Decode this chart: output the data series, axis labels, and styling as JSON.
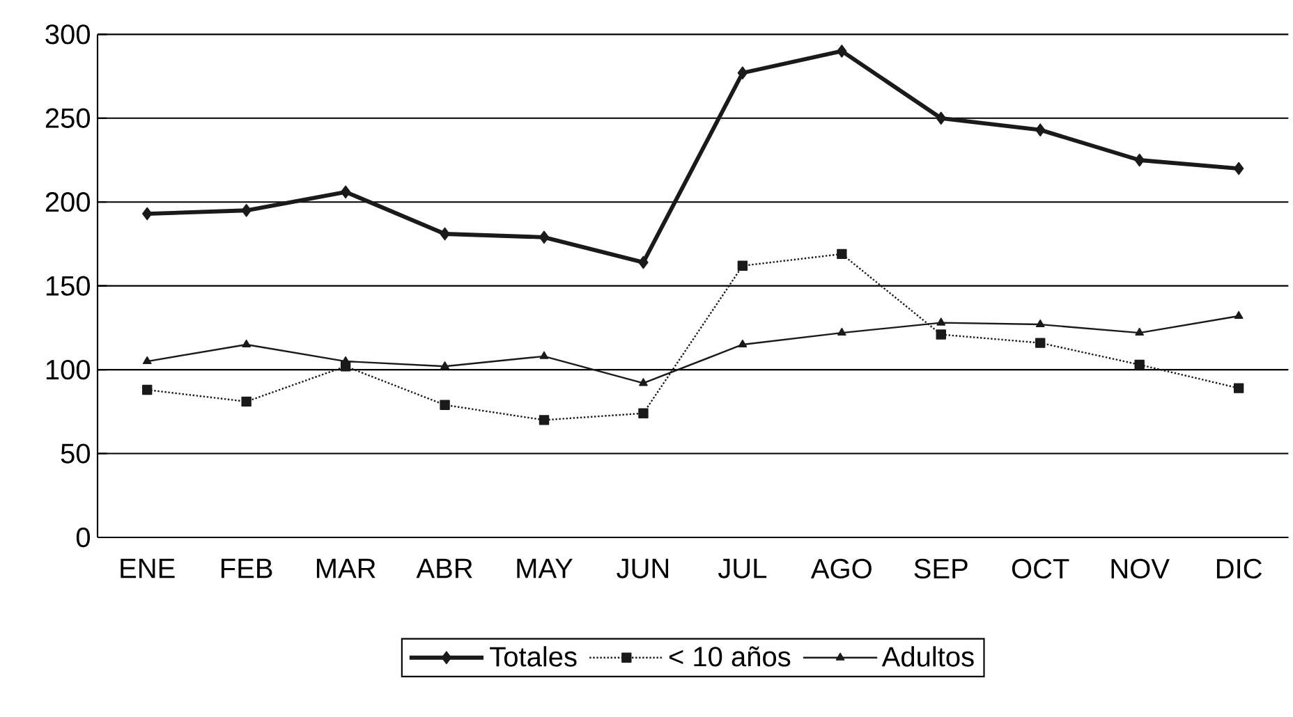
{
  "chart_data": {
    "type": "line",
    "categories": [
      "ENE",
      "FEB",
      "MAR",
      "ABR",
      "MAY",
      "JUN",
      "JUL",
      "AGO",
      "SEP",
      "OCT",
      "NOV",
      "DIC"
    ],
    "series": [
      {
        "name": "Totales",
        "color": "#1a1a1a",
        "marker": "diamond",
        "line_style": "solid",
        "values": [
          193,
          195,
          206,
          181,
          179,
          164,
          277,
          290,
          250,
          243,
          225,
          220
        ]
      },
      {
        "name": "< 10 años",
        "color": "#1a1a1a",
        "marker": "square",
        "line_style": "dotted",
        "values": [
          88,
          81,
          102,
          79,
          70,
          74,
          162,
          169,
          121,
          116,
          103,
          89
        ]
      },
      {
        "name": "Adultos",
        "color": "#1a1a1a",
        "marker": "triangle",
        "line_style": "solid",
        "values": [
          105,
          115,
          105,
          102,
          108,
          92,
          115,
          122,
          128,
          127,
          122,
          132
        ]
      }
    ],
    "ylim": [
      0,
      300
    ],
    "yticks": [
      0,
      50,
      100,
      150,
      200,
      250,
      300
    ],
    "grid": "y",
    "legend": "bottom"
  }
}
